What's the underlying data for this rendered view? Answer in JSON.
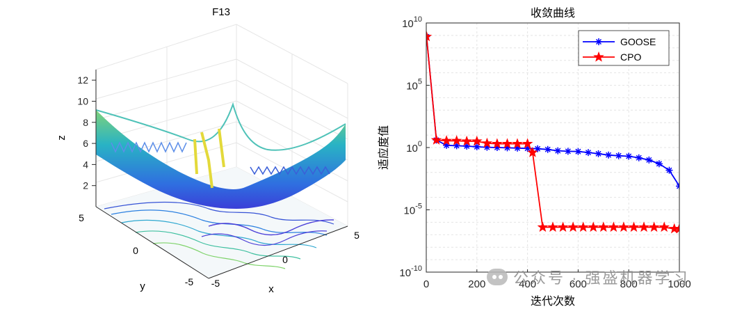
{
  "surface_plot": {
    "title": "F13",
    "xlabel": "x",
    "ylabel": "y",
    "zlabel": "z",
    "x_range": [
      -5,
      5
    ],
    "y_range": [
      -5,
      5
    ],
    "z_range": [
      0,
      13
    ],
    "x_ticks": [
      "-5",
      "0",
      "5"
    ],
    "y_ticks": [
      "-5",
      "0",
      "5"
    ],
    "z_ticks": [
      "2",
      "4",
      "6",
      "8",
      "10",
      "12"
    ]
  },
  "chart_data": {
    "type": "line",
    "title": "收敛曲线",
    "xlabel": "迭代次数",
    "ylabel": "适应度值",
    "yscale": "log",
    "xlim": [
      0,
      1000
    ],
    "ylim": [
      1e-10,
      10000000000.0
    ],
    "x_ticks": [
      "0",
      "200",
      "400",
      "600",
      "800",
      "1000"
    ],
    "y_ticks": [
      {
        "value": 10000000000.0,
        "base": "10",
        "exp": "10"
      },
      {
        "value": 100000.0,
        "base": "10",
        "exp": "5"
      },
      {
        "value": 1,
        "base": "10",
        "exp": "0"
      },
      {
        "value": 1e-05,
        "base": "10",
        "exp": "-5"
      },
      {
        "value": 1e-10,
        "base": "10",
        "exp": "-10"
      }
    ],
    "legend_position": "top-right",
    "series": [
      {
        "name": "GOOSE",
        "color": "#0000ff",
        "marker": "asterisk",
        "x": [
          1,
          40,
          80,
          120,
          160,
          200,
          240,
          280,
          320,
          360,
          400,
          440,
          480,
          520,
          560,
          600,
          640,
          680,
          720,
          760,
          800,
          840,
          880,
          920,
          960,
          1000
        ],
        "y": [
          800000000.0,
          4,
          1.5,
          1.4,
          1.3,
          1.15,
          1.05,
          1.0,
          0.95,
          0.9,
          0.85,
          0.8,
          0.7,
          0.55,
          0.5,
          0.48,
          0.4,
          0.32,
          0.25,
          0.22,
          0.2,
          0.15,
          0.1,
          0.05,
          0.015,
          0.0008
        ]
      },
      {
        "name": "CPO",
        "color": "#ff0000",
        "marker": "pentagram",
        "x": [
          1,
          40,
          80,
          120,
          160,
          200,
          240,
          280,
          320,
          360,
          400,
          420,
          460,
          500,
          540,
          580,
          620,
          660,
          700,
          740,
          780,
          820,
          860,
          900,
          940,
          980,
          1000
        ],
        "y": [
          800000000.0,
          4,
          3.5,
          3.5,
          3.2,
          3.2,
          2.2,
          2.0,
          2.0,
          2.0,
          2.0,
          0.4,
          4e-07,
          4e-07,
          4e-07,
          4e-07,
          4e-07,
          4e-07,
          4e-07,
          4e-07,
          4e-07,
          4e-07,
          4e-07,
          4e-07,
          4e-07,
          3e-07,
          3e-07
        ]
      }
    ]
  },
  "watermark": {
    "text": "公众号 · 强盛机器学习",
    "icon": "wechat-icon"
  }
}
